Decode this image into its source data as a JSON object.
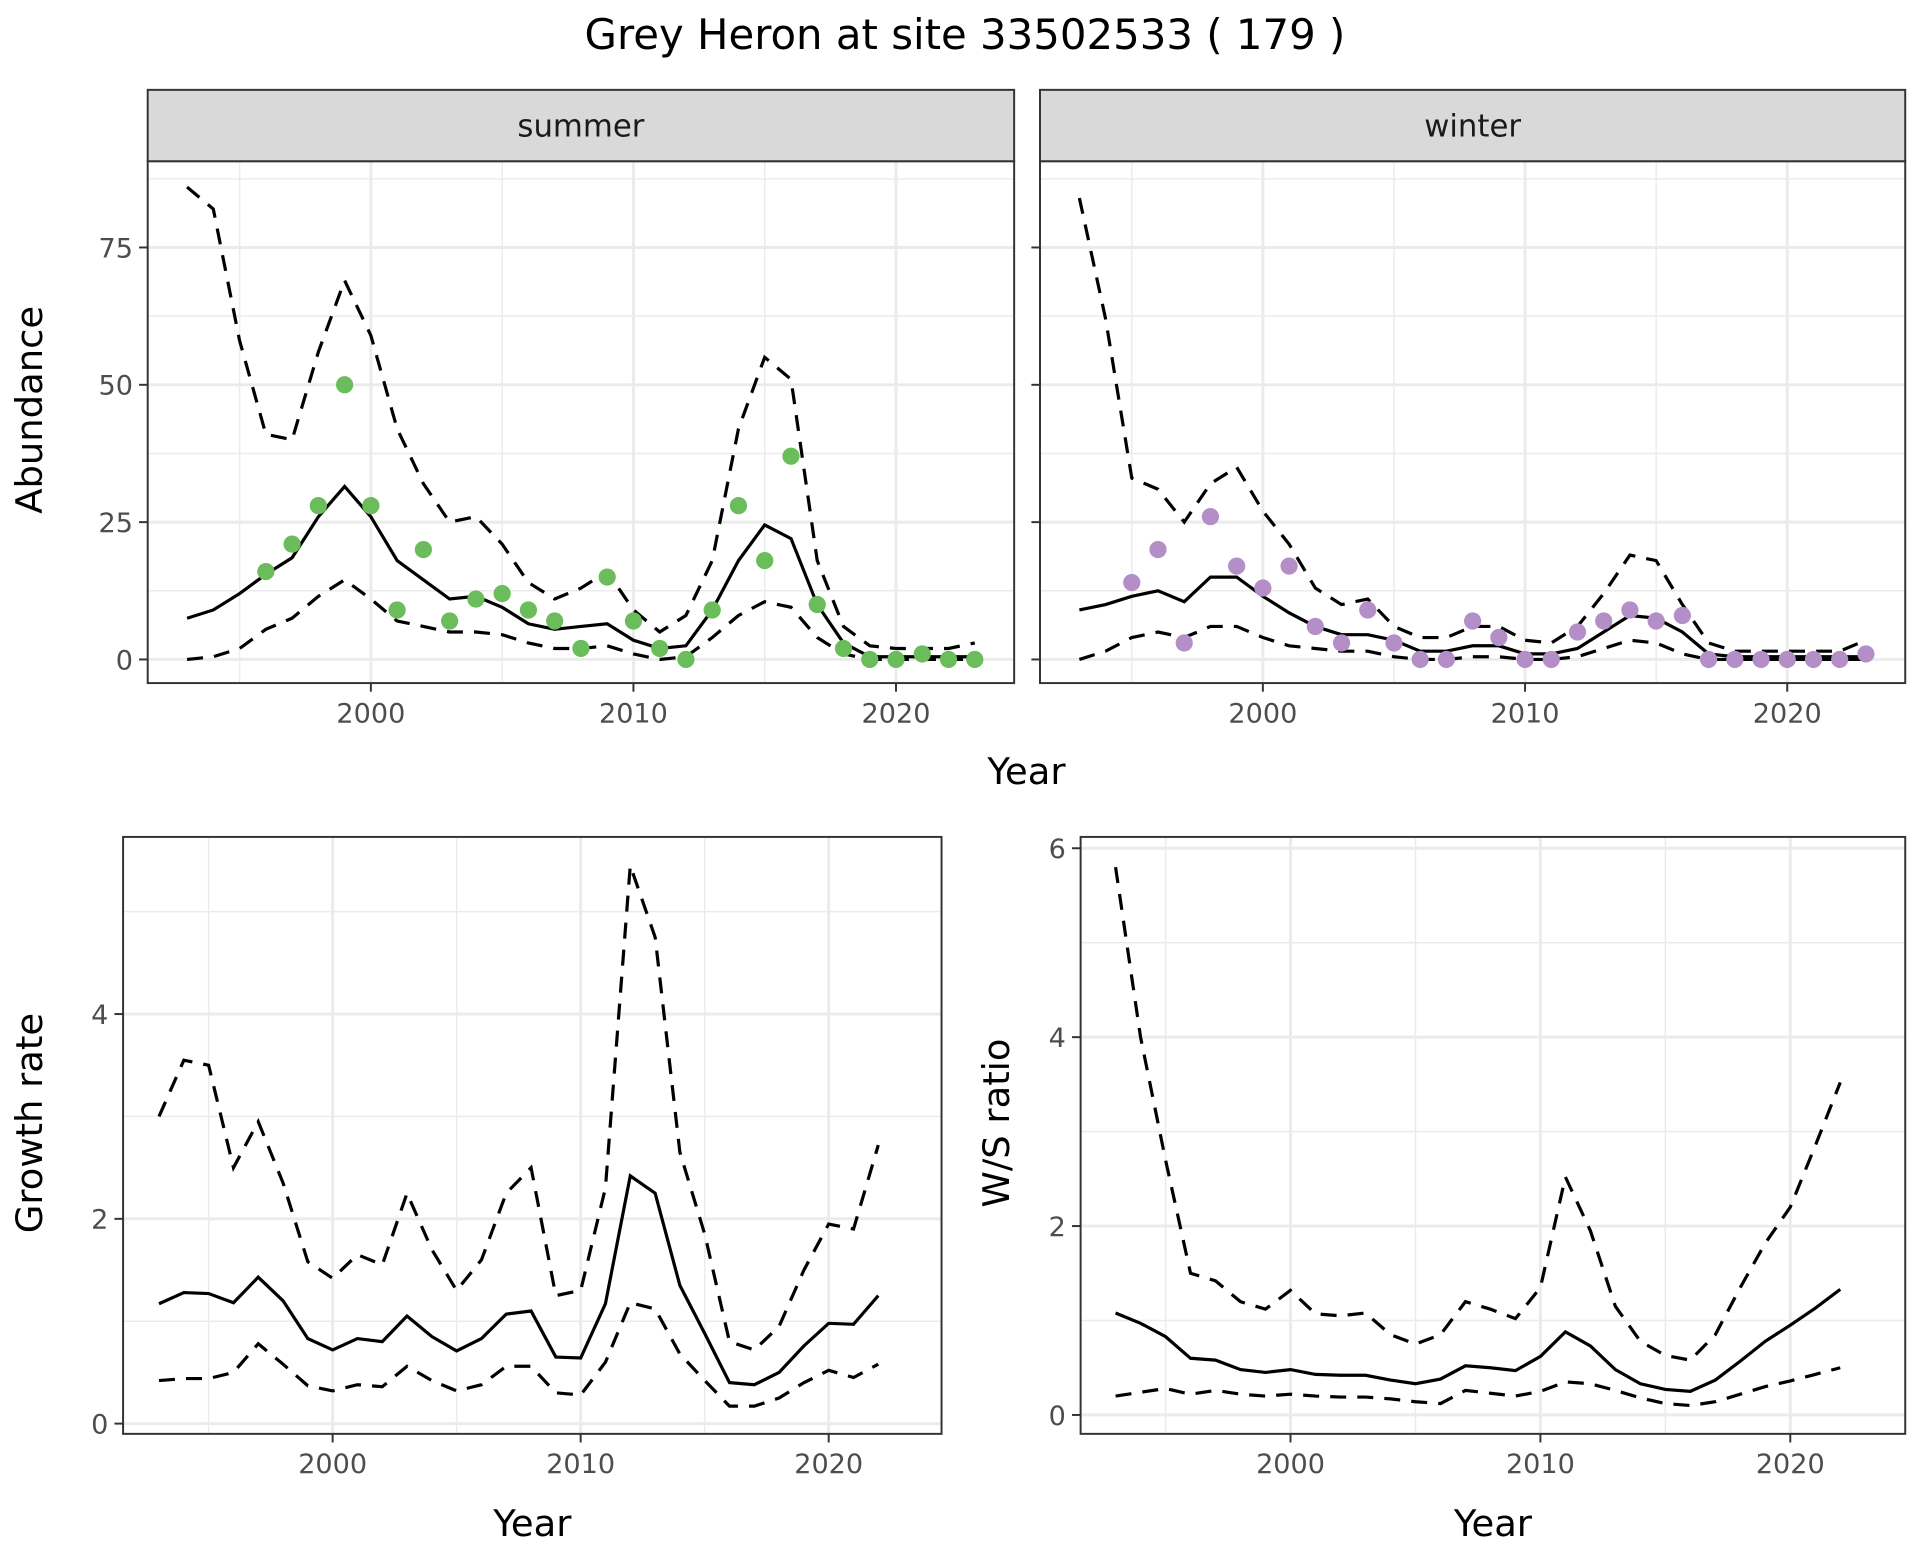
{
  "title": "Grey Heron at site 33502533 ( 179 )",
  "colors": {
    "summer_points": "#6abd5a",
    "winter_points": "#b48ec6",
    "line": "#000000",
    "strip": "#d9d9d9",
    "grid": "#ebebeb"
  },
  "chart_data": [
    {
      "id": "summer",
      "type": "line",
      "strip": "summer",
      "xlabel": "Year",
      "ylabel": "Abundance",
      "xlim": [
        1991.5,
        2024.5
      ],
      "ylim": [
        -4.3,
        90.7
      ],
      "grid": true,
      "xticks": [
        2000,
        2010,
        2020
      ],
      "xtick_labels": [
        "2000",
        "2010",
        "2020"
      ],
      "yticks": [
        0,
        25,
        50,
        75
      ],
      "ytick_labels": [
        "0",
        "25",
        "50",
        "75"
      ],
      "x": [
        1993,
        1994,
        1995,
        1996,
        1997,
        1998,
        1999,
        2000,
        2001,
        2002,
        2003,
        2004,
        2005,
        2006,
        2007,
        2008,
        2009,
        2010,
        2011,
        2012,
        2013,
        2014,
        2015,
        2016,
        2017,
        2018,
        2019,
        2020,
        2021,
        2022,
        2023
      ],
      "mean": [
        7.5,
        9,
        12,
        15.5,
        18.5,
        26,
        31.5,
        26,
        18,
        14.5,
        11,
        11.5,
        9.5,
        6.5,
        5.5,
        6,
        6.5,
        3.5,
        2,
        2.5,
        9,
        18,
        24.5,
        22,
        10,
        3,
        0.5,
        0.5,
        0.5,
        0.5,
        0.5
      ],
      "upper": [
        86,
        82,
        58,
        41,
        40,
        56,
        69,
        59,
        42,
        32,
        25,
        26,
        21,
        14,
        11,
        13,
        16,
        9,
        5,
        8,
        18,
        42,
        55,
        51,
        18,
        6,
        2.5,
        2,
        2,
        2,
        3
      ],
      "lower": [
        0,
        0.5,
        2,
        5.5,
        7.5,
        11.5,
        14.5,
        11,
        7,
        6,
        5,
        5,
        4.5,
        3,
        2,
        2,
        2.5,
        1,
        0,
        0.5,
        4,
        8,
        10.5,
        9.5,
        4,
        1,
        0,
        0,
        0,
        0,
        0
      ],
      "points_x": [
        1996,
        1997,
        1998,
        1999,
        2000,
        2001,
        2002,
        2003,
        2004,
        2005,
        2006,
        2007,
        2008,
        2009,
        2010,
        2011,
        2012,
        2013,
        2014,
        2015,
        2016,
        2017,
        2018,
        2019,
        2020,
        2021,
        2022,
        2023
      ],
      "points_y": [
        16,
        21,
        28,
        50,
        28,
        9,
        20,
        7,
        11,
        12,
        9,
        7,
        2,
        15,
        7,
        2,
        0,
        9,
        28,
        18,
        37,
        10,
        2,
        0,
        0,
        1,
        0,
        0
      ],
      "point_color": "#6abd5a"
    },
    {
      "id": "winter",
      "type": "line",
      "strip": "winter",
      "xlabel": "",
      "ylabel": "",
      "xlim": [
        1991.5,
        2024.5
      ],
      "ylim": [
        -4.3,
        90.7
      ],
      "grid": true,
      "xticks": [
        2000,
        2010,
        2020
      ],
      "xtick_labels": [
        "2000",
        "2010",
        "2020"
      ],
      "yticks": [
        0,
        25,
        50,
        75
      ],
      "ytick_labels": [],
      "x": [
        1993,
        1994,
        1995,
        1996,
        1997,
        1998,
        1999,
        2000,
        2001,
        2002,
        2003,
        2004,
        2005,
        2006,
        2007,
        2008,
        2009,
        2010,
        2011,
        2012,
        2013,
        2014,
        2015,
        2016,
        2017,
        2018,
        2019,
        2020,
        2021,
        2022,
        2023
      ],
      "mean": [
        9,
        10,
        11.5,
        12.5,
        10.5,
        15,
        15,
        11.5,
        8.5,
        6,
        4.5,
        4.5,
        3.5,
        1.5,
        1.5,
        2.5,
        2.5,
        1,
        1,
        2,
        5,
        8,
        7.5,
        5,
        1,
        0.5,
        0.5,
        0.5,
        0.5,
        0.5,
        0.5
      ],
      "upper": [
        84,
        62,
        33,
        31,
        25,
        32,
        35,
        27,
        21,
        13,
        10,
        11,
        6,
        4,
        4,
        6,
        6,
        3.5,
        3,
        6,
        12,
        19,
        18,
        10,
        3,
        1.5,
        1.5,
        1.5,
        1.5,
        1.5,
        3.5
      ],
      "lower": [
        0,
        1.5,
        4,
        5,
        4,
        6,
        6,
        4,
        2.5,
        2,
        1.5,
        1.5,
        0.5,
        0,
        0,
        0.5,
        0.5,
        0,
        0,
        0.5,
        2,
        3.5,
        3,
        1,
        0,
        0,
        0,
        0,
        0,
        0,
        0
      ],
      "points_x": [
        1995,
        1996,
        1997,
        1998,
        1999,
        2000,
        2001,
        2002,
        2003,
        2004,
        2005,
        2006,
        2007,
        2008,
        2009,
        2010,
        2011,
        2012,
        2013,
        2014,
        2015,
        2016,
        2017,
        2018,
        2019,
        2020,
        2021,
        2022,
        2023
      ],
      "points_y": [
        14,
        20,
        3,
        26,
        17,
        13,
        17,
        6,
        3,
        9,
        3,
        0,
        0,
        7,
        4,
        0,
        0,
        5,
        7,
        9,
        7,
        8,
        0,
        0,
        0,
        0,
        0,
        0,
        1
      ],
      "point_color": "#b48ec6"
    },
    {
      "id": "growth",
      "type": "line",
      "xlabel": "Year",
      "ylabel": "Growth rate",
      "xlim": [
        1991.55,
        2024.55
      ],
      "ylim": [
        -0.1,
        5.73
      ],
      "grid": true,
      "xticks": [
        2000,
        2010,
        2020
      ],
      "xtick_labels": [
        "2000",
        "2010",
        "2020"
      ],
      "yticks": [
        0,
        2,
        4
      ],
      "ytick_labels": [
        "0",
        "2",
        "4"
      ],
      "x": [
        1993,
        1994,
        1995,
        1996,
        1997,
        1998,
        1999,
        2000,
        2001,
        2002,
        2003,
        2004,
        2005,
        2006,
        2007,
        2008,
        2009,
        2010,
        2011,
        2012,
        2013,
        2014,
        2015,
        2016,
        2017,
        2018,
        2019,
        2020,
        2021,
        2022
      ],
      "mean": [
        1.17,
        1.28,
        1.27,
        1.18,
        1.43,
        1.2,
        0.83,
        0.72,
        0.83,
        0.8,
        1.05,
        0.85,
        0.71,
        0.83,
        1.07,
        1.1,
        0.65,
        0.64,
        1.17,
        2.42,
        2.25,
        1.35,
        0.88,
        0.4,
        0.38,
        0.5,
        0.76,
        0.98,
        0.97,
        1.25
      ],
      "upper": [
        3.0,
        3.55,
        3.5,
        2.5,
        2.95,
        2.35,
        1.58,
        1.42,
        1.65,
        1.55,
        2.25,
        1.7,
        1.3,
        1.6,
        2.25,
        2.5,
        1.25,
        1.3,
        2.3,
        5.45,
        4.75,
        2.65,
        1.85,
        0.8,
        0.72,
        0.95,
        1.5,
        1.95,
        1.9,
        2.72
      ],
      "lower": [
        0.42,
        0.44,
        0.44,
        0.5,
        0.78,
        0.58,
        0.37,
        0.32,
        0.38,
        0.36,
        0.56,
        0.42,
        0.32,
        0.38,
        0.56,
        0.56,
        0.3,
        0.28,
        0.6,
        1.18,
        1.12,
        0.68,
        0.42,
        0.17,
        0.17,
        0.25,
        0.4,
        0.52,
        0.45,
        0.58
      ]
    },
    {
      "id": "ratio",
      "type": "line",
      "xlabel": "Year",
      "ylabel": "W/S ratio",
      "xlim": [
        1991.6,
        2024.6
      ],
      "ylim": [
        -0.2,
        6.12
      ],
      "grid": true,
      "xticks": [
        2000,
        2010,
        2020
      ],
      "xtick_labels": [
        "2000",
        "2010",
        "2020"
      ],
      "yticks": [
        0,
        2,
        4,
        6
      ],
      "ytick_labels": [
        "0",
        "2",
        "4",
        "6"
      ],
      "x": [
        1993,
        1994,
        1995,
        1996,
        1997,
        1998,
        1999,
        2000,
        2001,
        2002,
        2003,
        2004,
        2005,
        2006,
        2007,
        2008,
        2009,
        2010,
        2011,
        2012,
        2013,
        2014,
        2015,
        2016,
        2017,
        2018,
        2019,
        2020,
        2021,
        2022
      ],
      "mean": [
        1.08,
        0.97,
        0.83,
        0.6,
        0.58,
        0.48,
        0.45,
        0.48,
        0.43,
        0.42,
        0.42,
        0.37,
        0.33,
        0.38,
        0.52,
        0.5,
        0.47,
        0.62,
        0.88,
        0.73,
        0.48,
        0.33,
        0.27,
        0.25,
        0.37,
        0.57,
        0.78,
        0.95,
        1.13,
        1.33
      ],
      "upper": [
        5.8,
        4.0,
        2.7,
        1.5,
        1.42,
        1.2,
        1.12,
        1.32,
        1.07,
        1.05,
        1.08,
        0.85,
        0.75,
        0.85,
        1.2,
        1.12,
        1.02,
        1.35,
        2.52,
        1.95,
        1.15,
        0.78,
        0.63,
        0.58,
        0.85,
        1.35,
        1.82,
        2.2,
        2.85,
        3.52
      ],
      "lower": [
        0.2,
        0.24,
        0.28,
        0.22,
        0.26,
        0.22,
        0.2,
        0.22,
        0.2,
        0.19,
        0.19,
        0.17,
        0.14,
        0.12,
        0.26,
        0.23,
        0.2,
        0.25,
        0.35,
        0.33,
        0.26,
        0.18,
        0.12,
        0.1,
        0.14,
        0.22,
        0.3,
        0.36,
        0.43,
        0.5
      ]
    }
  ]
}
